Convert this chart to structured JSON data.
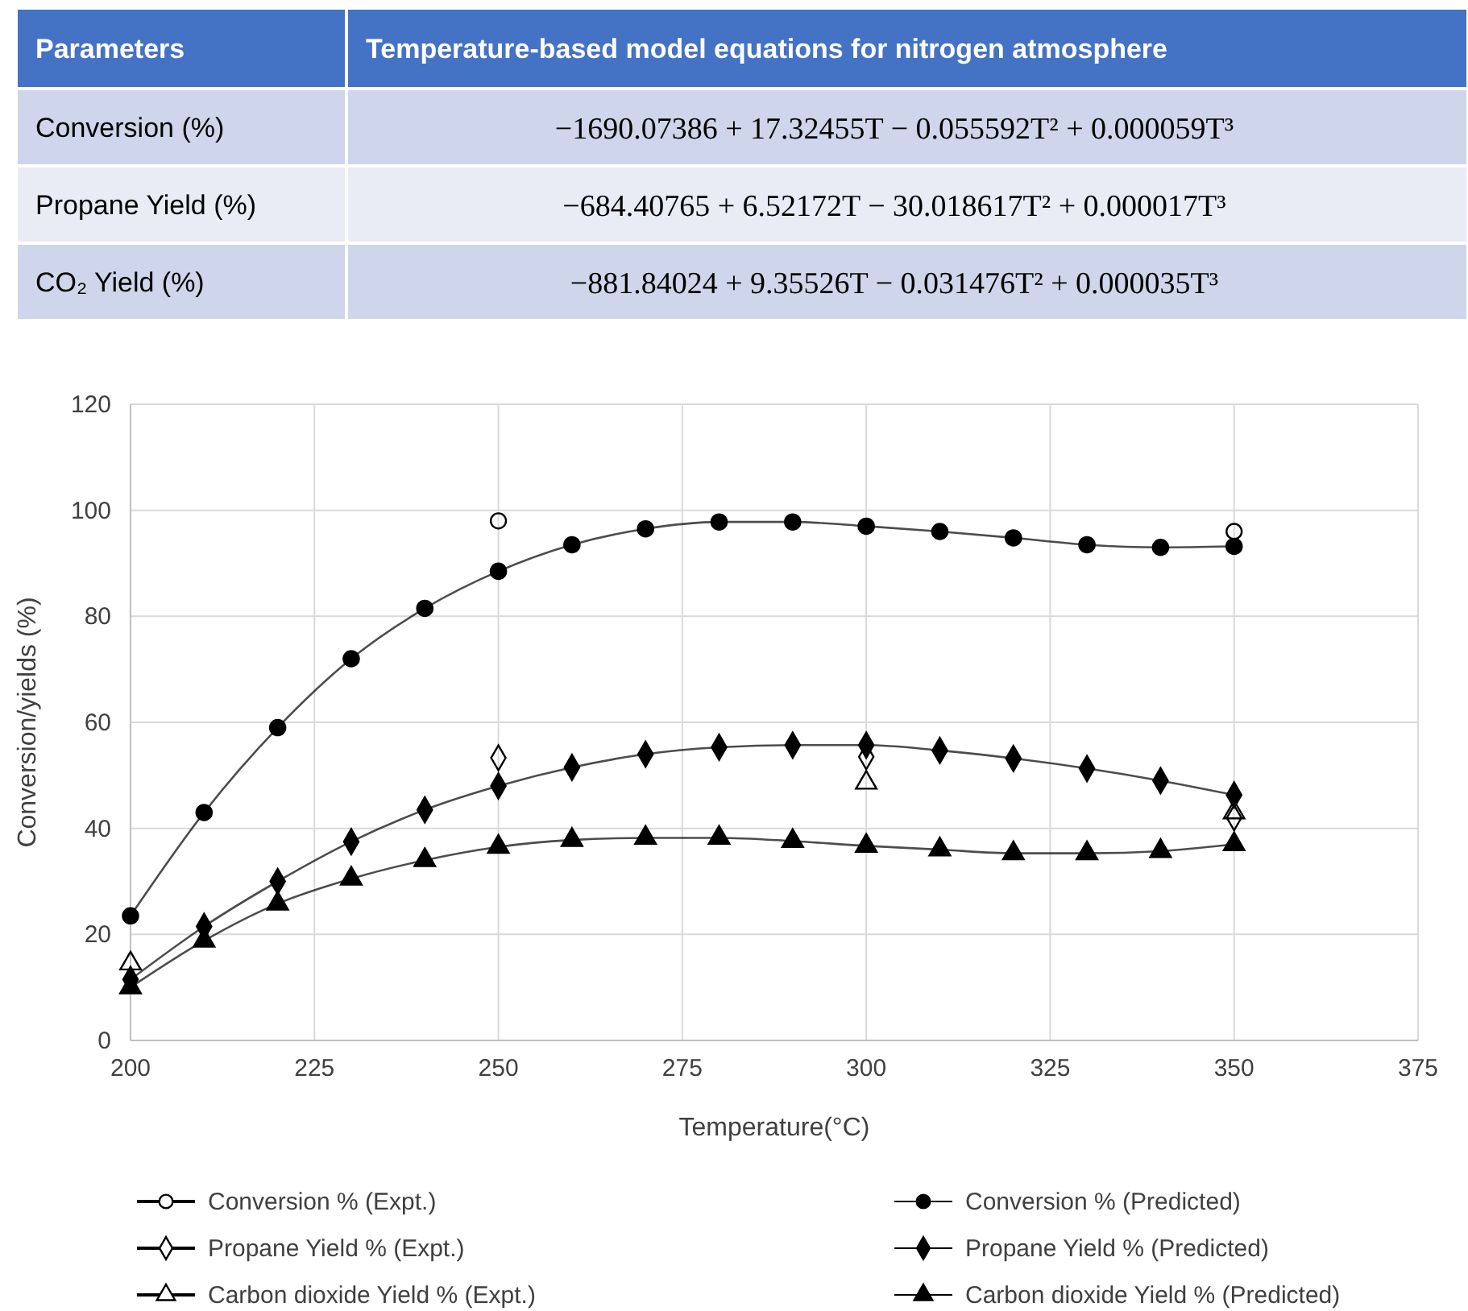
{
  "chart_data": [
    {
      "type": "other",
      "annotations": [
        "Parameters",
        "Temperature-based model equations for nitrogen atmosphere",
        "Conversion (%)",
        "−1690.07386 + 17.32455T − 0.055592T² + 0.000059T³",
        "Propane Yield (%)",
        "−684.40765 + 6.52172T − 30.018617T² + 0.000017T³",
        "CO₂ Yield (%)",
        "−881.84024 + 9.35526T − 0.031476T² + 0.000035T³"
      ]
    },
    {
      "type": "line",
      "xlabel": "Temperature(°C)",
      "ylabel": "Conversion/yields (%)",
      "xlim": [
        200,
        375
      ],
      "xticks": [
        200,
        225,
        250,
        275,
        300,
        325,
        350,
        375
      ],
      "ylim": [
        0,
        120
      ],
      "yticks": [
        0,
        20,
        40,
        60,
        80,
        100,
        120
      ],
      "grid": true,
      "legend": "bottom",
      "series": [
        {
          "name": "Conversion % (Expt.)",
          "type": "scatter",
          "marker": "circle",
          "color": "#000000",
          "x": [
            250,
            350
          ],
          "values": [
            98,
            96
          ]
        },
        {
          "name": "Conversion % (Predicted)",
          "type": "line",
          "marker": "circle",
          "color": "#000000",
          "x": [
            200,
            210,
            220,
            230,
            240,
            250,
            260,
            270,
            280,
            290,
            300,
            310,
            320,
            330,
            340,
            350
          ],
          "values": [
            23.5,
            43,
            59,
            72,
            81.5,
            88.5,
            93.5,
            96.5,
            97.8,
            97.8,
            97,
            96,
            94.8,
            93.5,
            93,
            93.2
          ]
        },
        {
          "name": "Propane Yield % (Expt.)",
          "type": "scatter",
          "marker": "diamond",
          "color": "#000000",
          "x": [
            250,
            300,
            350
          ],
          "values": [
            53.3,
            53.5,
            42
          ]
        },
        {
          "name": "Propane Yield % (Predicted)",
          "type": "line",
          "marker": "diamond",
          "color": "#000000",
          "x": [
            200,
            210,
            220,
            230,
            240,
            250,
            260,
            270,
            280,
            290,
            300,
            310,
            320,
            330,
            340,
            350
          ],
          "values": [
            11.5,
            21.5,
            30,
            37.5,
            43.5,
            48,
            51.5,
            54,
            55.3,
            55.7,
            55.7,
            54.7,
            53.2,
            51.3,
            49,
            46.3
          ]
        },
        {
          "name": "Carbon dioxide Yield % (Expt.)",
          "type": "scatter",
          "marker": "triangle",
          "color": "#000000",
          "x": [
            200,
            250,
            300,
            350
          ],
          "values": [
            14.5,
            null,
            48.6,
            43
          ]
        },
        {
          "name": "Carbon dioxide Yield % (Predicted)",
          "type": "line",
          "marker": "triangle",
          "color": "#000000",
          "x": [
            200,
            210,
            220,
            230,
            240,
            250,
            260,
            270,
            280,
            290,
            300,
            310,
            320,
            330,
            340,
            350
          ],
          "values": [
            10,
            18.8,
            25.8,
            30.5,
            34,
            36.5,
            37.8,
            38.2,
            38.2,
            37.6,
            36.7,
            36,
            35.3,
            35.3,
            35.7,
            37
          ]
        }
      ]
    }
  ]
}
